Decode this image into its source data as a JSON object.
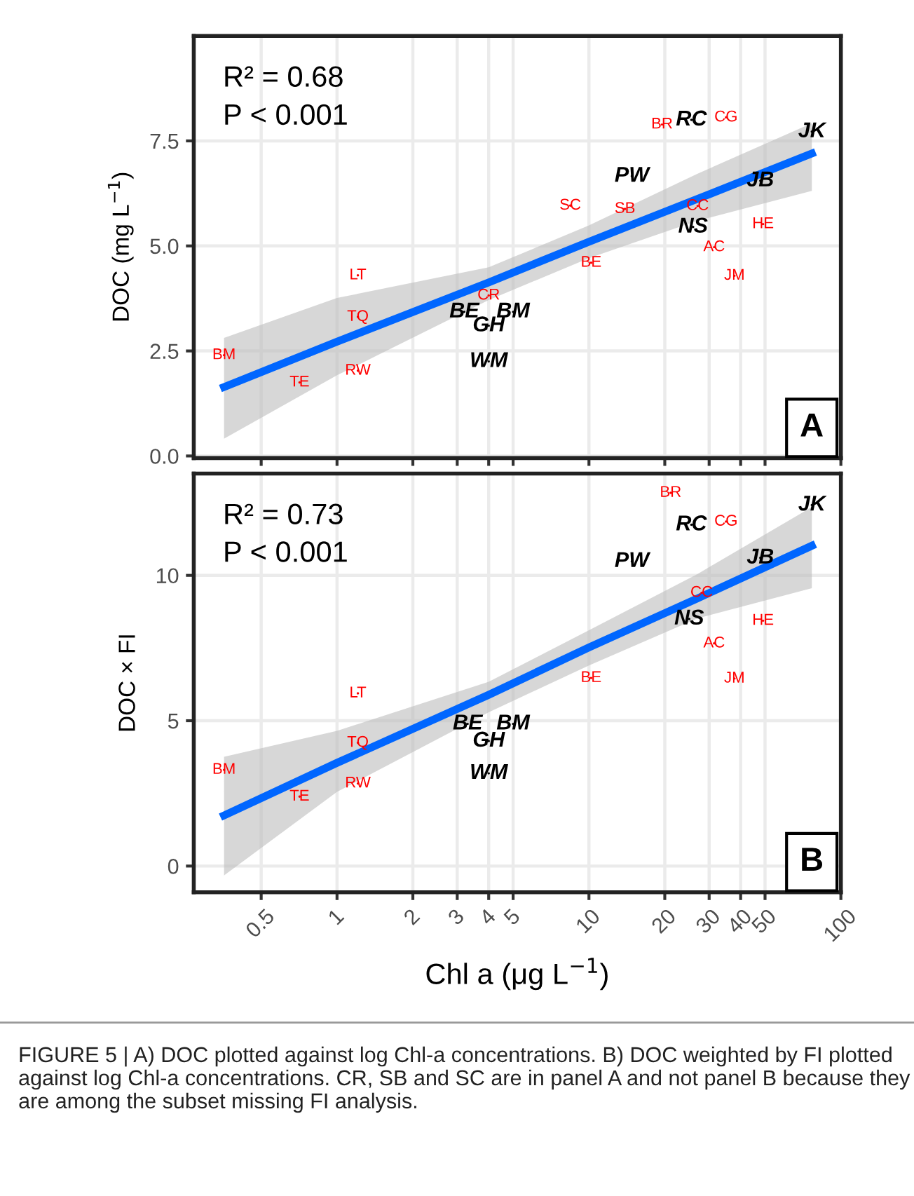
{
  "chart_data": [
    {
      "type": "scatter",
      "ylabel": "DOC (mg L$^{−1}$)",
      "log": "x",
      "xlim": [
        0.27,
        100
      ],
      "ylim": [
        -0.05,
        10
      ],
      "xticks": [
        0.5,
        1,
        2,
        3,
        4,
        5,
        10,
        20,
        30,
        40,
        50,
        100
      ],
      "yticks": [
        {
          "value": 0,
          "label": "0.0"
        },
        2.5,
        {
          "value": 5,
          "label": "5.0"
        },
        7.5
      ],
      "tick_labels": "y",
      "grid": true,
      "annotations": [
        "R² = 0.68",
        "P < 0.001",
        "A"
      ],
      "series": [
        {
          "color": "#ff0000",
          "marker": "circle",
          "x": [
            0.356,
            0.71,
            1.21,
            1.21,
            1.21,
            4.0,
            10.2,
            8.43,
            13.9,
            19.5,
            35,
            27,
            31.4,
            37.8,
            49.1
          ],
          "values": [
            2.4,
            1.75,
            2.03,
            3.31,
            4.3,
            3.82,
            4.6,
            5.96,
            5.88,
            7.89,
            8.06,
            5.95,
            4.97,
            4.29,
            5.52
          ],
          "value_labels": [
            "BM",
            "TE",
            "RW",
            "TQ",
            "LT",
            "CR",
            "BE",
            "SC",
            "SB",
            "BR",
            "CG",
            "CC",
            "AC",
            "JM",
            "HE"
          ]
        },
        {
          "color": "#000000",
          "marker": "circle",
          "x": [
            3.2,
            4.0,
            5.0,
            4.0,
            14.8,
            25.5,
            25.9,
            47.9,
            76.7
          ],
          "values": [
            3.43,
            3.1,
            3.43,
            2.25,
            6.66,
            8.0,
            5.45,
            6.55,
            7.72
          ],
          "value_labels": [
            "BE",
            "GH",
            "BM",
            "WM",
            "PW",
            "RC",
            "NS",
            "JB",
            "JK"
          ]
        },
        {
          "type": "line",
          "color": "#0066ff",
          "x": [
            0.356,
            1,
            4,
            10,
            27,
            76.7
          ],
          "values": [
            1.64,
            2.72,
            4.13,
            5.1,
            6.12,
            7.2
          ],
          "lower": [
            0.41,
            1.92,
            3.71,
            4.71,
            5.6,
            6.31
          ],
          "upper": [
            2.81,
            3.76,
            4.49,
            5.49,
            6.72,
            7.92
          ]
        }
      ]
    },
    {
      "type": "scatter",
      "ylabel": "DOC × FI",
      "xlabel": "Chl a (μg L$^{−1}$)",
      "log": "x",
      "xlim": [
        0.27,
        100
      ],
      "ylim": [
        -0.9,
        13.5
      ],
      "xticks": [
        0.5,
        1,
        2,
        3,
        4,
        5,
        10,
        20,
        30,
        40,
        50,
        100
      ],
      "yticks": [
        0,
        5,
        10
      ],
      "grid": true,
      "annotations": [
        "R² = 0.73",
        "P < 0.001",
        "B",
        "FIGURE 5 | A) DOC plotted against log Chl-a concentrations. B) DOC weighted by FI plotted against log Chl-a concentrations. CR, SB and SC are in panel A and not panel B because they are among the subset missing FI analysis."
      ],
      "series": [
        {
          "color": "#ff0000",
          "marker": "circle",
          "x": [
            0.356,
            0.71,
            1.21,
            1.21,
            1.21,
            10.2,
            21.1,
            35,
            28,
            31.4,
            37.8,
            49.1
          ],
          "values": [
            3.31,
            2.39,
            2.84,
            4.24,
            5.94,
            6.47,
            12.84,
            11.85,
            9.4,
            7.66,
            6.45,
            8.44
          ],
          "value_labels": [
            "BM",
            "TE",
            "RW",
            "TQ",
            "LT",
            "BE",
            "BR",
            "CG",
            "CC",
            "AC",
            "JM",
            "HE"
          ]
        },
        {
          "color": "#000000",
          "marker": "circle",
          "x": [
            3.3,
            4.0,
            5.0,
            4.0,
            14.8,
            25.5,
            25.0,
            47.9,
            76.7
          ],
          "values": [
            4.89,
            4.3,
            4.89,
            3.19,
            10.48,
            11.74,
            8.5,
            10.6,
            12.42
          ],
          "value_labels": [
            "BE",
            "GH",
            "BM",
            "WM",
            "PW",
            "RC",
            "NS",
            "JB",
            "JK"
          ]
        },
        {
          "type": "line",
          "color": "#0066ff",
          "x": [
            0.356,
            1,
            4,
            10,
            27,
            76.7
          ],
          "values": [
            1.74,
            3.55,
            5.89,
            7.52,
            9.21,
            11.02
          ],
          "lower": [
            -0.32,
            2.55,
            5.29,
            6.9,
            8.52,
            9.56
          ],
          "upper": [
            3.76,
            4.65,
            6.34,
            8.11,
            10.05,
            12.35
          ]
        }
      ]
    }
  ]
}
